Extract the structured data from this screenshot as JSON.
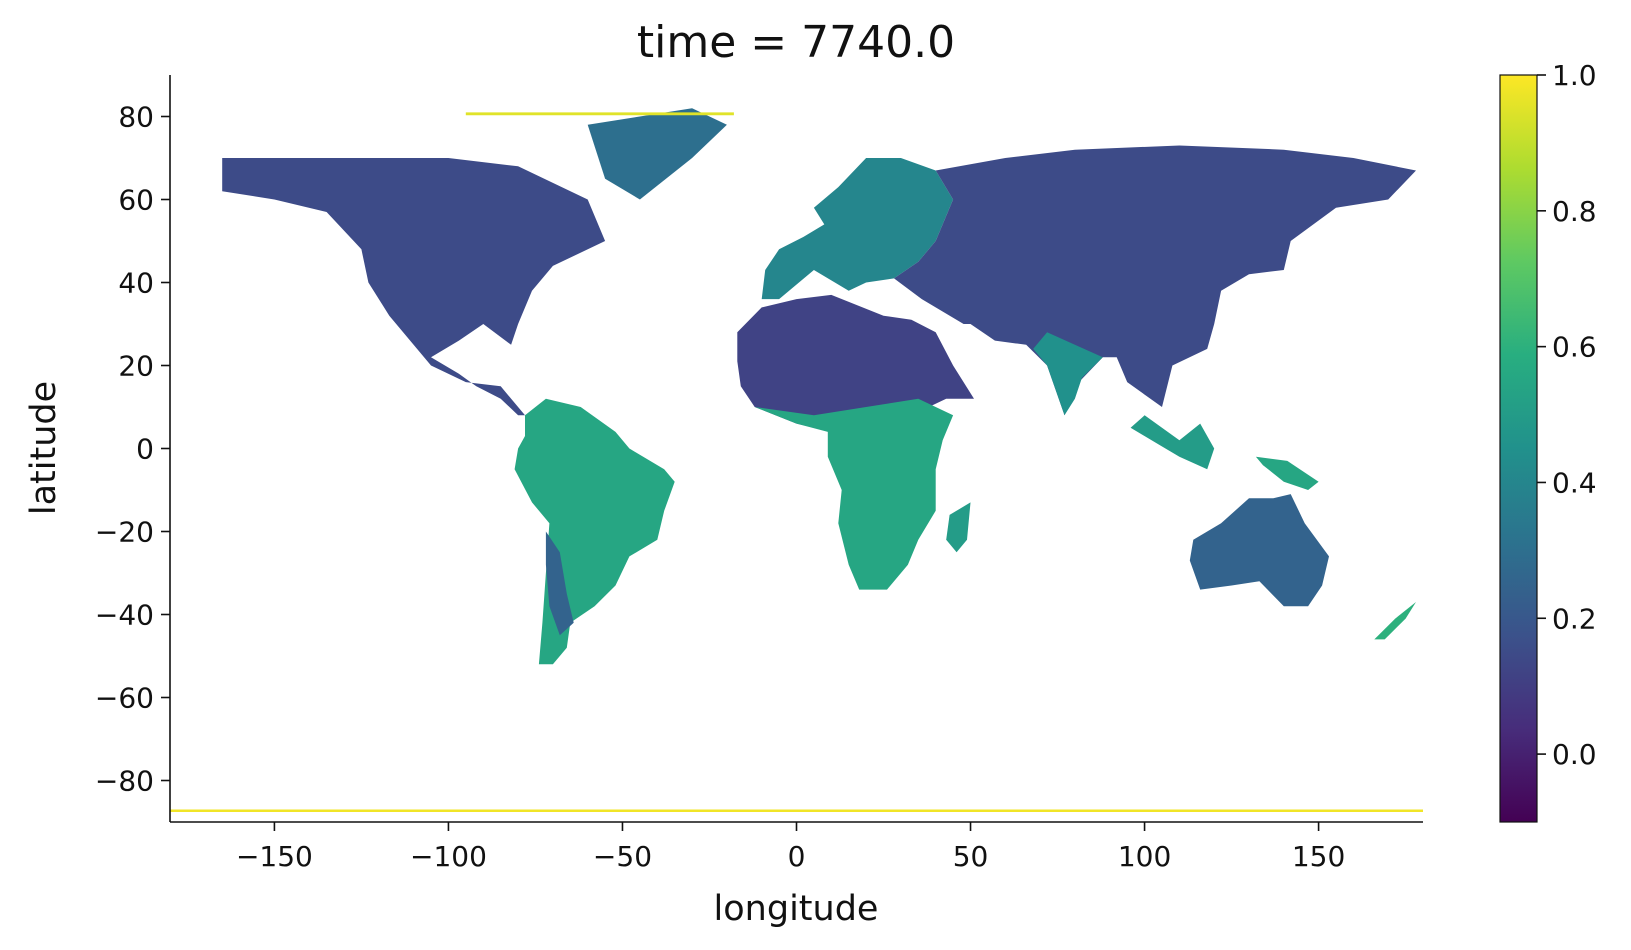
{
  "chart_data": {
    "type": "heatmap",
    "title": "time = 7740.0",
    "xlabel": "longitude",
    "ylabel": "latitude",
    "xlim": [
      -180,
      180
    ],
    "ylim": [
      -90,
      90
    ],
    "x_ticks": [
      -150,
      -100,
      -50,
      0,
      50,
      100,
      150
    ],
    "x_tick_labels": [
      "−150",
      "−100",
      "−50",
      "0",
      "50",
      "100",
      "150"
    ],
    "y_ticks": [
      80,
      60,
      40,
      20,
      0,
      -20,
      -40,
      -60,
      -80
    ],
    "y_tick_labels": [
      "80",
      "60",
      "40",
      "20",
      "0",
      "−20",
      "−40",
      "−60",
      "−80"
    ],
    "grid": false,
    "colormap": "viridis",
    "colorbar": {
      "vmin": -0.1,
      "vmax": 1.0,
      "ticks": [
        1.0,
        0.8,
        0.6,
        0.4,
        0.2,
        0.0
      ],
      "tick_labels": [
        "1.0",
        "0.8",
        "0.6",
        "0.4",
        "0.2",
        "0.0"
      ]
    },
    "regions": [
      {
        "name": "north-america",
        "value": 0.15,
        "polygon": [
          [
            -165,
            70
          ],
          [
            -140,
            70
          ],
          [
            -100,
            70
          ],
          [
            -80,
            68
          ],
          [
            -60,
            60
          ],
          [
            -55,
            50
          ],
          [
            -70,
            44
          ],
          [
            -76,
            38
          ],
          [
            -80,
            30
          ],
          [
            -82,
            25
          ],
          [
            -90,
            30
          ],
          [
            -97,
            26
          ],
          [
            -105,
            22
          ],
          [
            -97,
            18
          ],
          [
            -92,
            15
          ],
          [
            -85,
            12
          ],
          [
            -80,
            8
          ],
          [
            -78,
            8
          ],
          [
            -85,
            15
          ],
          [
            -95,
            16
          ],
          [
            -105,
            20
          ],
          [
            -110,
            25
          ],
          [
            -117,
            32
          ],
          [
            -123,
            40
          ],
          [
            -125,
            48
          ],
          [
            -135,
            57
          ],
          [
            -150,
            60
          ],
          [
            -165,
            62
          ]
        ]
      },
      {
        "name": "greenland-ice",
        "value": 0.3,
        "polygon": [
          [
            -60,
            78
          ],
          [
            -30,
            82
          ],
          [
            -20,
            78
          ],
          [
            -30,
            70
          ],
          [
            -45,
            60
          ],
          [
            -55,
            65
          ]
        ]
      },
      {
        "name": "south-america",
        "value": 0.55,
        "polygon": [
          [
            -78,
            8
          ],
          [
            -72,
            12
          ],
          [
            -62,
            10
          ],
          [
            -52,
            4
          ],
          [
            -48,
            0
          ],
          [
            -38,
            -5
          ],
          [
            -35,
            -8
          ],
          [
            -38,
            -15
          ],
          [
            -40,
            -22
          ],
          [
            -48,
            -26
          ],
          [
            -52,
            -33
          ],
          [
            -58,
            -38
          ],
          [
            -65,
            -42
          ],
          [
            -66,
            -48
          ],
          [
            -70,
            -52
          ],
          [
            -74,
            -52
          ],
          [
            -73,
            -42
          ],
          [
            -72,
            -30
          ],
          [
            -71,
            -18
          ],
          [
            -76,
            -13
          ],
          [
            -81,
            -5
          ],
          [
            -80,
            0
          ],
          [
            -78,
            3
          ]
        ]
      },
      {
        "name": "patagonia",
        "value": 0.25,
        "polygon": [
          [
            -72,
            -20
          ],
          [
            -68,
            -25
          ],
          [
            -66,
            -35
          ],
          [
            -64,
            -42
          ],
          [
            -68,
            -45
          ],
          [
            -71,
            -38
          ],
          [
            -72,
            -28
          ]
        ]
      },
      {
        "name": "africa-north",
        "value": 0.12,
        "polygon": [
          [
            -17,
            21
          ],
          [
            -16,
            15
          ],
          [
            -12,
            10
          ],
          [
            0,
            6
          ],
          [
            10,
            4
          ],
          [
            20,
            5
          ],
          [
            30,
            6
          ],
          [
            38,
            10
          ],
          [
            43,
            12
          ],
          [
            51,
            12
          ],
          [
            45,
            20
          ],
          [
            40,
            28
          ],
          [
            33,
            31
          ],
          [
            25,
            32
          ],
          [
            10,
            37
          ],
          [
            0,
            36
          ],
          [
            -10,
            34
          ],
          [
            -17,
            28
          ]
        ]
      },
      {
        "name": "africa-south",
        "value": 0.55,
        "polygon": [
          [
            -12,
            10
          ],
          [
            0,
            6
          ],
          [
            9,
            4
          ],
          [
            9,
            -2
          ],
          [
            13,
            -10
          ],
          [
            12,
            -18
          ],
          [
            15,
            -28
          ],
          [
            18,
            -34
          ],
          [
            26,
            -34
          ],
          [
            32,
            -28
          ],
          [
            35,
            -22
          ],
          [
            40,
            -15
          ],
          [
            40,
            -5
          ],
          [
            42,
            2
          ],
          [
            45,
            8
          ],
          [
            35,
            12
          ],
          [
            20,
            10
          ],
          [
            5,
            8
          ]
        ]
      },
      {
        "name": "madagascar",
        "value": 0.5,
        "polygon": [
          [
            44,
            -16
          ],
          [
            50,
            -13
          ],
          [
            49,
            -22
          ],
          [
            46,
            -25
          ],
          [
            43,
            -22
          ]
        ]
      },
      {
        "name": "europe",
        "value": 0.4,
        "polygon": [
          [
            -10,
            36
          ],
          [
            -9,
            43
          ],
          [
            -5,
            48
          ],
          [
            2,
            51
          ],
          [
            8,
            54
          ],
          [
            5,
            58
          ],
          [
            12,
            63
          ],
          [
            20,
            70
          ],
          [
            30,
            70
          ],
          [
            40,
            67
          ],
          [
            45,
            60
          ],
          [
            40,
            50
          ],
          [
            35,
            45
          ],
          [
            28,
            41
          ],
          [
            20,
            40
          ],
          [
            15,
            38
          ],
          [
            5,
            43
          ],
          [
            -5,
            36
          ]
        ]
      },
      {
        "name": "asia",
        "value": 0.15,
        "polygon": [
          [
            28,
            41
          ],
          [
            35,
            45
          ],
          [
            40,
            50
          ],
          [
            45,
            60
          ],
          [
            40,
            67
          ],
          [
            60,
            70
          ],
          [
            80,
            72
          ],
          [
            110,
            73
          ],
          [
            140,
            72
          ],
          [
            160,
            70
          ],
          [
            178,
            67
          ],
          [
            170,
            60
          ],
          [
            155,
            58
          ],
          [
            142,
            50
          ],
          [
            140,
            43
          ],
          [
            130,
            42
          ],
          [
            122,
            38
          ],
          [
            120,
            30
          ],
          [
            118,
            24
          ],
          [
            108,
            20
          ],
          [
            105,
            10
          ],
          [
            100,
            13
          ],
          [
            95,
            16
          ],
          [
            92,
            22
          ],
          [
            88,
            22
          ],
          [
            80,
            15
          ],
          [
            77,
            8
          ],
          [
            72,
            20
          ],
          [
            66,
            25
          ],
          [
            57,
            26
          ],
          [
            50,
            30
          ],
          [
            48,
            30
          ],
          [
            36,
            36
          ]
        ]
      },
      {
        "name": "india",
        "value": 0.45,
        "polygon": [
          [
            68,
            24
          ],
          [
            72,
            20
          ],
          [
            77,
            8
          ],
          [
            80,
            12
          ],
          [
            82,
            17
          ],
          [
            88,
            22
          ],
          [
            80,
            25
          ],
          [
            72,
            28
          ]
        ]
      },
      {
        "name": "southeast-asia",
        "value": 0.5,
        "polygon": [
          [
            96,
            5
          ],
          [
            104,
            1
          ],
          [
            110,
            -2
          ],
          [
            118,
            -5
          ],
          [
            120,
            0
          ],
          [
            116,
            6
          ],
          [
            110,
            2
          ],
          [
            100,
            8
          ]
        ]
      },
      {
        "name": "australia",
        "value": 0.25,
        "polygon": [
          [
            114,
            -22
          ],
          [
            122,
            -18
          ],
          [
            130,
            -12
          ],
          [
            137,
            -12
          ],
          [
            142,
            -11
          ],
          [
            146,
            -18
          ],
          [
            153,
            -26
          ],
          [
            151,
            -33
          ],
          [
            147,
            -38
          ],
          [
            140,
            -38
          ],
          [
            133,
            -32
          ],
          [
            125,
            -33
          ],
          [
            116,
            -34
          ],
          [
            113,
            -27
          ]
        ]
      },
      {
        "name": "new-guinea",
        "value": 0.55,
        "polygon": [
          [
            132,
            -2
          ],
          [
            141,
            -3
          ],
          [
            150,
            -8
          ],
          [
            147,
            -10
          ],
          [
            140,
            -8
          ],
          [
            134,
            -4
          ]
        ]
      },
      {
        "name": "new-zealand",
        "value": 0.6,
        "polygon": [
          [
            166,
            -46
          ],
          [
            172,
            -41
          ],
          [
            178,
            -37
          ],
          [
            175,
            -41
          ],
          [
            169,
            -46
          ]
        ]
      },
      {
        "name": "arctic-band",
        "value": 0.95,
        "polygon": [
          [
            -95,
            81
          ],
          [
            -18,
            81
          ],
          [
            -18,
            80.3
          ],
          [
            -95,
            80.3
          ]
        ]
      },
      {
        "name": "antarctic-band",
        "value": 0.98,
        "polygon": [
          [
            -180,
            -87
          ],
          [
            180,
            -87
          ],
          [
            180,
            -87.6
          ],
          [
            -180,
            -87.6
          ]
        ]
      }
    ]
  }
}
